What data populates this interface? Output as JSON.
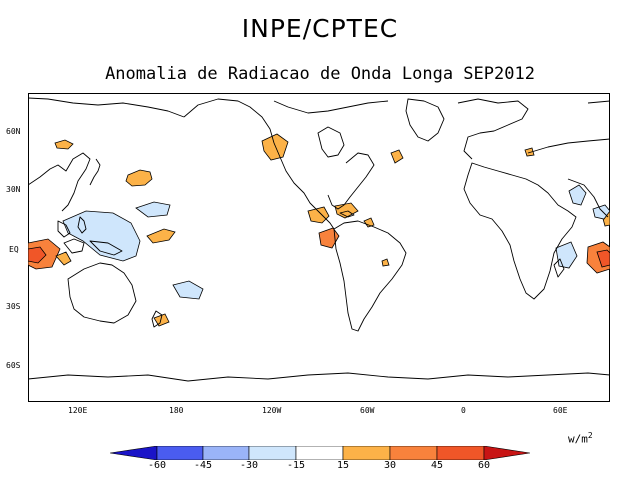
{
  "header": {
    "title": "INPE/CPTEC",
    "subtitle": "Anomalia de Radiacao de Onda Longa SEP2012"
  },
  "map": {
    "lat_labels": [
      "60N",
      "30N",
      "EQ",
      "30S",
      "60S"
    ],
    "lon_labels": [
      "120E",
      "180",
      "120W",
      "60W",
      "0",
      "60E"
    ],
    "units": "w/m",
    "units_exponent": "2"
  },
  "colorbar": {
    "ticks": [
      "-60",
      "-45",
      "-30",
      "-15",
      "15",
      "30",
      "45",
      "60"
    ],
    "colors": [
      "#1a14c8",
      "#4a5cf0",
      "#9ab4f8",
      "#cfe6fc",
      "#ffffff",
      "#fcb248",
      "#f8823c",
      "#f05628",
      "#c81414"
    ]
  },
  "colors": {
    "positive_light": "#fcb248",
    "positive_mid": "#f8823c",
    "negative_light": "#cfe6fc",
    "land_outline": "#000000"
  }
}
